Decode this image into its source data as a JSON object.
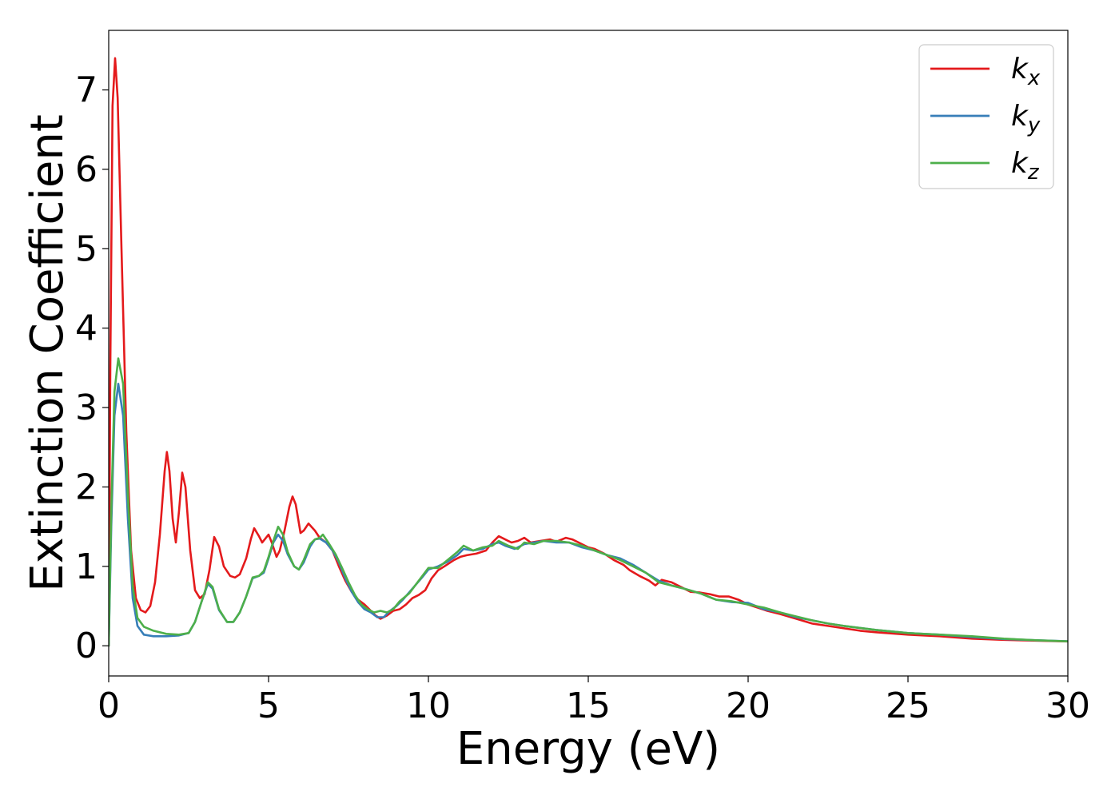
{
  "chart_data": {
    "type": "line",
    "xlabel": "Energy (eV)",
    "ylabel": "Extinction Coefficient",
    "xlim": [
      0,
      30
    ],
    "ylim": [
      -0.38,
      7.75
    ],
    "xticks": [
      0,
      5,
      10,
      15,
      20,
      25,
      30
    ],
    "yticks": [
      0,
      1,
      2,
      3,
      4,
      5,
      6,
      7
    ],
    "grid": false,
    "legend_position": "top-right",
    "series": [
      {
        "name": "k_x",
        "legend_base": "k",
        "legend_sub": "x",
        "color": "#e41a1c",
        "points": [
          [
            0,
            0
          ],
          [
            0.05,
            3.5
          ],
          [
            0.12,
            6.8
          ],
          [
            0.2,
            7.4
          ],
          [
            0.28,
            6.9
          ],
          [
            0.4,
            5.0
          ],
          [
            0.55,
            2.7
          ],
          [
            0.7,
            1.2
          ],
          [
            0.85,
            0.6
          ],
          [
            1.0,
            0.45
          ],
          [
            1.15,
            0.42
          ],
          [
            1.3,
            0.5
          ],
          [
            1.45,
            0.8
          ],
          [
            1.6,
            1.4
          ],
          [
            1.75,
            2.2
          ],
          [
            1.82,
            2.44
          ],
          [
            1.9,
            2.2
          ],
          [
            2.0,
            1.6
          ],
          [
            2.1,
            1.3
          ],
          [
            2.2,
            1.7
          ],
          [
            2.3,
            2.18
          ],
          [
            2.4,
            2.0
          ],
          [
            2.55,
            1.2
          ],
          [
            2.7,
            0.7
          ],
          [
            2.85,
            0.6
          ],
          [
            3.0,
            0.65
          ],
          [
            3.15,
            0.95
          ],
          [
            3.3,
            1.37
          ],
          [
            3.45,
            1.25
          ],
          [
            3.6,
            1.0
          ],
          [
            3.8,
            0.88
          ],
          [
            3.95,
            0.86
          ],
          [
            4.1,
            0.9
          ],
          [
            4.3,
            1.1
          ],
          [
            4.45,
            1.35
          ],
          [
            4.55,
            1.48
          ],
          [
            4.7,
            1.38
          ],
          [
            4.8,
            1.3
          ],
          [
            4.9,
            1.35
          ],
          [
            5.0,
            1.4
          ],
          [
            5.1,
            1.3
          ],
          [
            5.25,
            1.12
          ],
          [
            5.35,
            1.2
          ],
          [
            5.5,
            1.45
          ],
          [
            5.65,
            1.75
          ],
          [
            5.75,
            1.88
          ],
          [
            5.85,
            1.78
          ],
          [
            6.0,
            1.42
          ],
          [
            6.1,
            1.45
          ],
          [
            6.25,
            1.54
          ],
          [
            6.45,
            1.45
          ],
          [
            6.6,
            1.36
          ],
          [
            6.8,
            1.3
          ],
          [
            7.0,
            1.2
          ],
          [
            7.2,
            1.0
          ],
          [
            7.4,
            0.82
          ],
          [
            7.6,
            0.68
          ],
          [
            7.8,
            0.58
          ],
          [
            8.0,
            0.52
          ],
          [
            8.2,
            0.44
          ],
          [
            8.35,
            0.38
          ],
          [
            8.5,
            0.34
          ],
          [
            8.7,
            0.38
          ],
          [
            8.9,
            0.44
          ],
          [
            9.1,
            0.46
          ],
          [
            9.3,
            0.52
          ],
          [
            9.5,
            0.6
          ],
          [
            9.7,
            0.64
          ],
          [
            9.9,
            0.7
          ],
          [
            10.1,
            0.85
          ],
          [
            10.3,
            0.95
          ],
          [
            10.5,
            1.0
          ],
          [
            10.8,
            1.08
          ],
          [
            11.0,
            1.12
          ],
          [
            11.2,
            1.14
          ],
          [
            11.5,
            1.16
          ],
          [
            11.8,
            1.2
          ],
          [
            12.0,
            1.3
          ],
          [
            12.2,
            1.38
          ],
          [
            12.4,
            1.34
          ],
          [
            12.6,
            1.3
          ],
          [
            12.8,
            1.32
          ],
          [
            13.0,
            1.36
          ],
          [
            13.2,
            1.3
          ],
          [
            13.5,
            1.32
          ],
          [
            13.8,
            1.34
          ],
          [
            14.0,
            1.31
          ],
          [
            14.3,
            1.36
          ],
          [
            14.5,
            1.34
          ],
          [
            14.8,
            1.28
          ],
          [
            15.0,
            1.24
          ],
          [
            15.2,
            1.22
          ],
          [
            15.5,
            1.16
          ],
          [
            15.8,
            1.08
          ],
          [
            16.1,
            1.02
          ],
          [
            16.3,
            0.95
          ],
          [
            16.6,
            0.88
          ],
          [
            16.9,
            0.82
          ],
          [
            17.1,
            0.76
          ],
          [
            17.3,
            0.83
          ],
          [
            17.6,
            0.8
          ],
          [
            17.9,
            0.74
          ],
          [
            18.2,
            0.68
          ],
          [
            18.5,
            0.67
          ],
          [
            18.8,
            0.65
          ],
          [
            19.1,
            0.62
          ],
          [
            19.4,
            0.62
          ],
          [
            19.7,
            0.58
          ],
          [
            20.0,
            0.52
          ],
          [
            20.3,
            0.48
          ],
          [
            20.6,
            0.44
          ],
          [
            21.0,
            0.4
          ],
          [
            21.5,
            0.34
          ],
          [
            22.0,
            0.28
          ],
          [
            22.5,
            0.25
          ],
          [
            23.0,
            0.22
          ],
          [
            23.5,
            0.19
          ],
          [
            24.0,
            0.17
          ],
          [
            25.0,
            0.14
          ],
          [
            26.0,
            0.12
          ],
          [
            27.0,
            0.09
          ],
          [
            28.0,
            0.075
          ],
          [
            29.0,
            0.065
          ],
          [
            30.0,
            0.055
          ]
        ]
      },
      {
        "name": "k_y",
        "legend_base": "k",
        "legend_sub": "y",
        "color": "#377eb8",
        "points": [
          [
            0,
            0
          ],
          [
            0.08,
            1.5
          ],
          [
            0.18,
            2.9
          ],
          [
            0.3,
            3.3
          ],
          [
            0.45,
            2.9
          ],
          [
            0.6,
            1.6
          ],
          [
            0.75,
            0.6
          ],
          [
            0.9,
            0.25
          ],
          [
            1.1,
            0.14
          ],
          [
            1.4,
            0.12
          ],
          [
            1.8,
            0.12
          ],
          [
            2.2,
            0.13
          ],
          [
            2.5,
            0.16
          ],
          [
            2.7,
            0.3
          ],
          [
            2.9,
            0.55
          ],
          [
            3.1,
            0.78
          ],
          [
            3.25,
            0.72
          ],
          [
            3.45,
            0.45
          ],
          [
            3.7,
            0.3
          ],
          [
            3.9,
            0.3
          ],
          [
            4.1,
            0.42
          ],
          [
            4.3,
            0.62
          ],
          [
            4.5,
            0.85
          ],
          [
            4.7,
            0.88
          ],
          [
            4.85,
            0.92
          ],
          [
            5.0,
            1.1
          ],
          [
            5.15,
            1.3
          ],
          [
            5.3,
            1.4
          ],
          [
            5.45,
            1.32
          ],
          [
            5.6,
            1.15
          ],
          [
            5.8,
            1.0
          ],
          [
            5.95,
            0.96
          ],
          [
            6.1,
            1.05
          ],
          [
            6.3,
            1.25
          ],
          [
            6.45,
            1.34
          ],
          [
            6.6,
            1.35
          ],
          [
            6.8,
            1.3
          ],
          [
            7.0,
            1.2
          ],
          [
            7.2,
            1.05
          ],
          [
            7.4,
            0.85
          ],
          [
            7.6,
            0.68
          ],
          [
            7.8,
            0.55
          ],
          [
            8.0,
            0.46
          ],
          [
            8.2,
            0.42
          ],
          [
            8.4,
            0.36
          ],
          [
            8.6,
            0.36
          ],
          [
            8.8,
            0.44
          ],
          [
            9.0,
            0.5
          ],
          [
            9.2,
            0.58
          ],
          [
            9.5,
            0.72
          ],
          [
            9.8,
            0.86
          ],
          [
            10.0,
            0.96
          ],
          [
            10.3,
            1.0
          ],
          [
            10.6,
            1.06
          ],
          [
            10.9,
            1.14
          ],
          [
            11.1,
            1.22
          ],
          [
            11.4,
            1.2
          ],
          [
            11.7,
            1.22
          ],
          [
            12.0,
            1.28
          ],
          [
            12.2,
            1.3
          ],
          [
            12.4,
            1.26
          ],
          [
            12.7,
            1.22
          ],
          [
            13.0,
            1.28
          ],
          [
            13.3,
            1.3
          ],
          [
            13.6,
            1.32
          ],
          [
            14.0,
            1.3
          ],
          [
            14.4,
            1.3
          ],
          [
            14.8,
            1.24
          ],
          [
            15.2,
            1.2
          ],
          [
            15.6,
            1.14
          ],
          [
            16.0,
            1.1
          ],
          [
            16.4,
            1.02
          ],
          [
            16.8,
            0.92
          ],
          [
            17.2,
            0.82
          ],
          [
            17.6,
            0.76
          ],
          [
            18.0,
            0.72
          ],
          [
            18.5,
            0.66
          ],
          [
            19.0,
            0.58
          ],
          [
            19.5,
            0.55
          ],
          [
            20.0,
            0.54
          ],
          [
            20.5,
            0.46
          ],
          [
            21.0,
            0.42
          ],
          [
            21.5,
            0.36
          ],
          [
            22.0,
            0.32
          ],
          [
            22.5,
            0.28
          ],
          [
            23.0,
            0.25
          ],
          [
            24.0,
            0.2
          ],
          [
            25.0,
            0.16
          ],
          [
            26.0,
            0.14
          ],
          [
            27.0,
            0.11
          ],
          [
            28.0,
            0.085
          ],
          [
            29.0,
            0.07
          ],
          [
            30.0,
            0.058
          ]
        ]
      },
      {
        "name": "k_z",
        "legend_base": "k",
        "legend_sub": "z",
        "color": "#4daf4a",
        "points": [
          [
            0,
            0
          ],
          [
            0.08,
            1.7
          ],
          [
            0.18,
            3.2
          ],
          [
            0.3,
            3.62
          ],
          [
            0.45,
            3.3
          ],
          [
            0.6,
            1.9
          ],
          [
            0.75,
            0.75
          ],
          [
            0.9,
            0.35
          ],
          [
            1.1,
            0.24
          ],
          [
            1.4,
            0.19
          ],
          [
            1.8,
            0.15
          ],
          [
            2.2,
            0.14
          ],
          [
            2.5,
            0.16
          ],
          [
            2.7,
            0.3
          ],
          [
            2.9,
            0.55
          ],
          [
            3.1,
            0.8
          ],
          [
            3.25,
            0.74
          ],
          [
            3.45,
            0.46
          ],
          [
            3.7,
            0.3
          ],
          [
            3.9,
            0.3
          ],
          [
            4.1,
            0.42
          ],
          [
            4.3,
            0.62
          ],
          [
            4.5,
            0.86
          ],
          [
            4.7,
            0.88
          ],
          [
            4.85,
            0.94
          ],
          [
            5.0,
            1.12
          ],
          [
            5.15,
            1.32
          ],
          [
            5.3,
            1.5
          ],
          [
            5.45,
            1.4
          ],
          [
            5.6,
            1.18
          ],
          [
            5.8,
            1.0
          ],
          [
            5.95,
            0.96
          ],
          [
            6.1,
            1.08
          ],
          [
            6.3,
            1.28
          ],
          [
            6.45,
            1.34
          ],
          [
            6.6,
            1.36
          ],
          [
            6.7,
            1.4
          ],
          [
            6.9,
            1.28
          ],
          [
            7.1,
            1.15
          ],
          [
            7.3,
            0.98
          ],
          [
            7.5,
            0.8
          ],
          [
            7.7,
            0.64
          ],
          [
            7.9,
            0.52
          ],
          [
            8.1,
            0.46
          ],
          [
            8.3,
            0.42
          ],
          [
            8.5,
            0.44
          ],
          [
            8.7,
            0.42
          ],
          [
            8.9,
            0.46
          ],
          [
            9.1,
            0.56
          ],
          [
            9.4,
            0.66
          ],
          [
            9.7,
            0.82
          ],
          [
            10.0,
            0.98
          ],
          [
            10.3,
            0.98
          ],
          [
            10.6,
            1.08
          ],
          [
            10.9,
            1.18
          ],
          [
            11.1,
            1.26
          ],
          [
            11.4,
            1.2
          ],
          [
            11.7,
            1.24
          ],
          [
            12.0,
            1.26
          ],
          [
            12.2,
            1.32
          ],
          [
            12.5,
            1.26
          ],
          [
            12.8,
            1.22
          ],
          [
            13.0,
            1.3
          ],
          [
            13.3,
            1.28
          ],
          [
            13.6,
            1.32
          ],
          [
            14.0,
            1.32
          ],
          [
            14.4,
            1.3
          ],
          [
            14.8,
            1.26
          ],
          [
            15.2,
            1.2
          ],
          [
            15.6,
            1.14
          ],
          [
            16.0,
            1.08
          ],
          [
            16.4,
            1.0
          ],
          [
            16.8,
            0.92
          ],
          [
            17.2,
            0.8
          ],
          [
            17.6,
            0.76
          ],
          [
            18.0,
            0.72
          ],
          [
            18.5,
            0.66
          ],
          [
            19.0,
            0.58
          ],
          [
            19.5,
            0.56
          ],
          [
            20.0,
            0.52
          ],
          [
            20.5,
            0.48
          ],
          [
            21.0,
            0.42
          ],
          [
            21.5,
            0.37
          ],
          [
            22.0,
            0.32
          ],
          [
            22.5,
            0.28
          ],
          [
            23.0,
            0.25
          ],
          [
            24.0,
            0.2
          ],
          [
            25.0,
            0.16
          ],
          [
            26.0,
            0.14
          ],
          [
            27.0,
            0.12
          ],
          [
            28.0,
            0.09
          ],
          [
            29.0,
            0.07
          ],
          [
            30.0,
            0.056
          ]
        ]
      }
    ]
  }
}
